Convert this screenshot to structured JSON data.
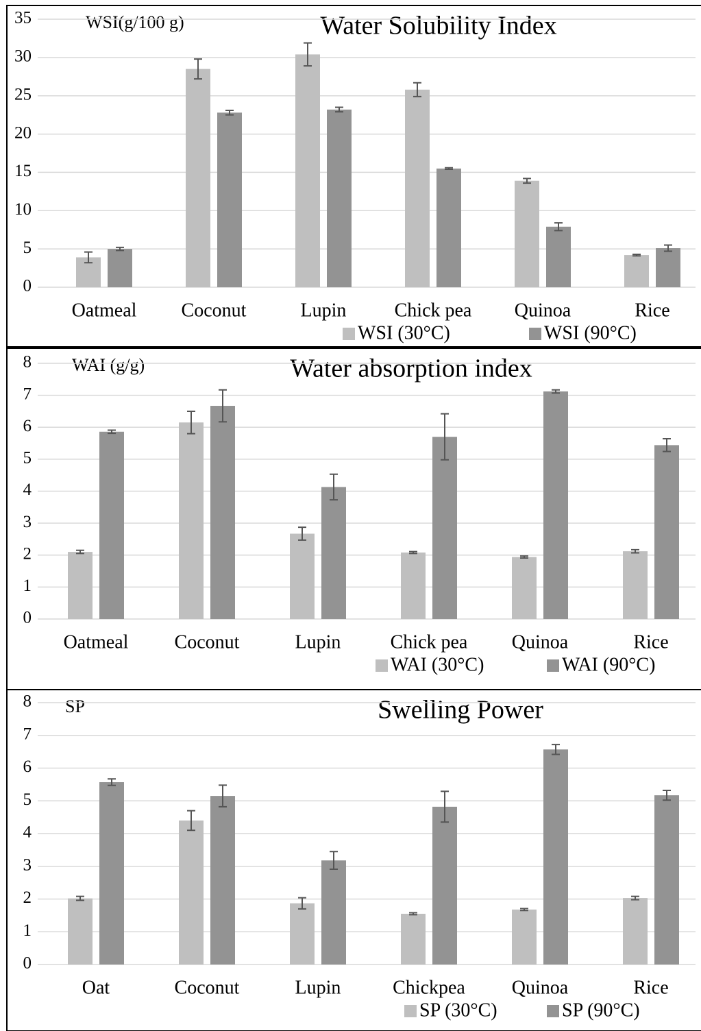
{
  "chart_data": [
    {
      "type": "bar",
      "title": "Water Solubility Index",
      "y_label": "WSI(g/100 g)",
      "categories": [
        "Oatmeal",
        "Coconut",
        "Lupin",
        "Chick pea",
        "Quinoa",
        "Rice"
      ],
      "series": [
        {
          "name": "WSI (30°C)",
          "color": "#bfbfbf",
          "values": [
            3.9,
            28.5,
            30.4,
            25.8,
            13.9,
            4.2
          ],
          "errors": [
            0.7,
            1.3,
            1.5,
            0.9,
            0.3,
            0.1
          ]
        },
        {
          "name": "WSI (90°C)",
          "color": "#939393",
          "values": [
            5.0,
            22.8,
            23.2,
            15.5,
            7.9,
            5.1
          ],
          "errors": [
            0.2,
            0.3,
            0.3,
            0.1,
            0.5,
            0.4
          ]
        }
      ],
      "ylim": [
        0,
        35
      ],
      "yticks": [
        0,
        5,
        10,
        15,
        20,
        25,
        30,
        35
      ],
      "grid": true
    },
    {
      "type": "bar",
      "title": "Water absorption index",
      "y_label": "WAI (g/g)",
      "categories": [
        "Oatmeal",
        "Coconut",
        "Lupin",
        "Chick pea",
        "Quinoa",
        "Rice"
      ],
      "series": [
        {
          "name": "WAI (30°C)",
          "color": "#bfbfbf",
          "values": [
            2.1,
            6.15,
            2.67,
            2.08,
            1.94,
            2.12
          ],
          "errors": [
            0.05,
            0.35,
            0.2,
            0.03,
            0.03,
            0.05
          ]
        },
        {
          "name": "WAI (90°C)",
          "color": "#939393",
          "values": [
            5.86,
            6.67,
            4.13,
            5.7,
            7.12,
            5.44
          ],
          "errors": [
            0.05,
            0.5,
            0.4,
            0.72,
            0.05,
            0.2
          ]
        }
      ],
      "ylim": [
        0,
        8
      ],
      "yticks": [
        0,
        1,
        2,
        3,
        4,
        5,
        6,
        7,
        8
      ],
      "grid": true
    },
    {
      "type": "bar",
      "title": "Swelling Power",
      "y_label": "SP",
      "categories": [
        "Oat",
        "Coconut",
        "Lupin",
        "Chickpea",
        "Quinoa",
        "Rice"
      ],
      "series": [
        {
          "name": "SP (30°C)",
          "color": "#bfbfbf",
          "values": [
            2.02,
            4.4,
            1.87,
            1.55,
            1.68,
            2.03
          ],
          "errors": [
            0.06,
            0.3,
            0.17,
            0.03,
            0.03,
            0.05
          ]
        },
        {
          "name": "SP (90°C)",
          "color": "#939393",
          "values": [
            5.57,
            5.15,
            3.18,
            4.82,
            6.57,
            5.17
          ],
          "errors": [
            0.1,
            0.33,
            0.27,
            0.47,
            0.15,
            0.15
          ]
        }
      ],
      "ylim": [
        0,
        8
      ],
      "yticks": [
        0,
        1,
        2,
        3,
        4,
        5,
        6,
        7,
        8
      ],
      "grid": true
    }
  ]
}
